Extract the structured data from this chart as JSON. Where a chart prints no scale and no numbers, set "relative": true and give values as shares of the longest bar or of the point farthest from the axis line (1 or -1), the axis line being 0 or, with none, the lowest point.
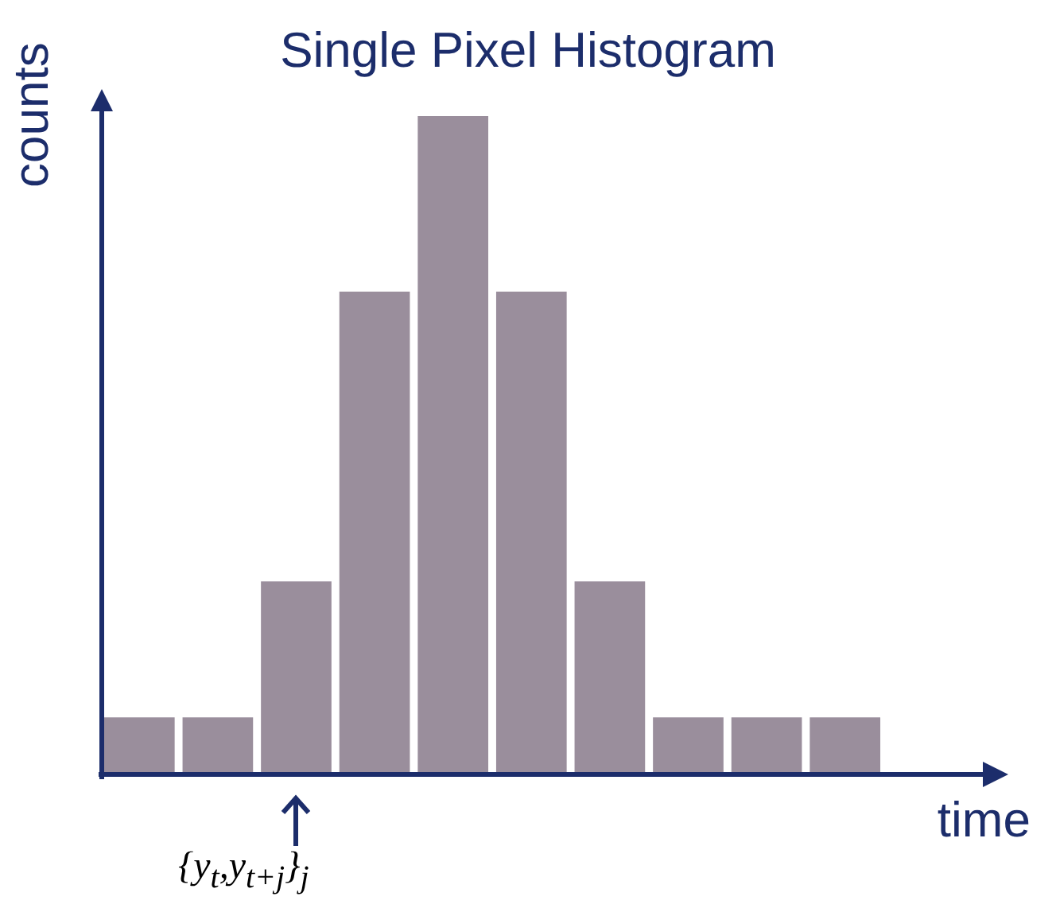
{
  "chart_data": {
    "type": "bar",
    "title": "Single Pixel Histogram",
    "xlabel": "time",
    "ylabel": "counts",
    "categories": [
      null,
      null,
      null,
      null,
      null,
      null,
      null,
      null,
      null,
      null
    ],
    "values": [
      0.089,
      0.089,
      0.295,
      0.734,
      1,
      0.734,
      0.295,
      0.089,
      0.089,
      0.089
    ],
    "color": "#9a8e9c",
    "relative": true,
    "grid": false,
    "legend": false,
    "annotations": [
      "{y$_{t}$,y$_{t+j}$}$_{j}$"
    ]
  }
}
